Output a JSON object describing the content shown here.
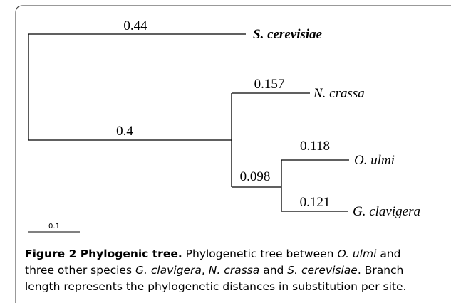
{
  "tree": {
    "branches": [
      {
        "length": "0.44",
        "leaf": "S. cerevisiae"
      },
      {
        "length": "0.4"
      },
      {
        "length": "0.157",
        "leaf": "N. crassa"
      },
      {
        "length": "0.098"
      },
      {
        "length": "0.118",
        "leaf": "O. ulmi"
      },
      {
        "length": "0.121",
        "leaf": "G. clavigera"
      }
    ],
    "scale_bar": "0.1"
  },
  "caption": {
    "lines": [
      [
        "Figure 2 Phylogenic tree.",
        " Phylogenetic tree between ",
        "O. ulmi",
        " and"
      ],
      [
        "three other species ",
        "G. clavigera",
        ", ",
        "N. crassa",
        " and ",
        "S. cerevisiae",
        ". Branch"
      ],
      [
        "length represents the phylogenetic distances in substitution per site."
      ]
    ]
  }
}
